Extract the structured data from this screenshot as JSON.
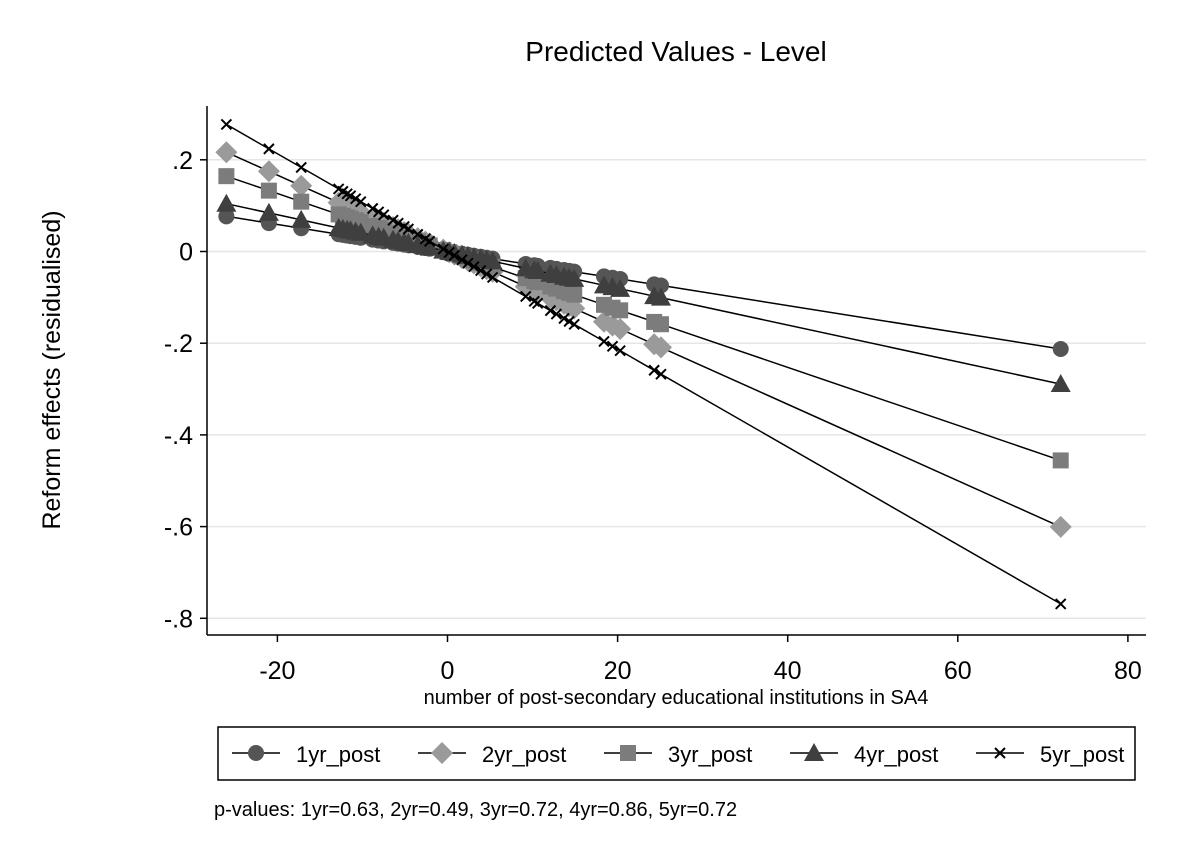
{
  "chart_data": {
    "type": "line",
    "title": "Predicted Values - Level",
    "xlabel": "number of post-secondary educational institutions in SA4",
    "ylabel": "Reform effects (residualised)",
    "xlim": [
      -28,
      82
    ],
    "ylim": [
      -0.83,
      0.32
    ],
    "x_ticks": [
      -20,
      0,
      20,
      40,
      60,
      80
    ],
    "x_tick_labels": [
      "-20",
      "0",
      "20",
      "40",
      "60",
      "80"
    ],
    "y_ticks": [
      0.2,
      0,
      -0.2,
      -0.4,
      -0.6,
      -0.8
    ],
    "y_tick_labels": [
      ".2",
      "0",
      "-.2",
      "-.4",
      "-.6",
      "-.8"
    ],
    "grid": "horizontal",
    "legend_position": "bottom",
    "x": [
      -26,
      -21,
      -17.2,
      -12.8,
      -12.3,
      -11.8,
      -11.4,
      -10.8,
      -10.2,
      -8.8,
      -8.1,
      -7.5,
      -6.4,
      -5.8,
      -5.1,
      -4.6,
      -3.5,
      -2.6,
      -2.1,
      -0.5,
      0.2,
      0.8,
      1.7,
      2.4,
      3.1,
      3.9,
      4.6,
      5.3,
      9.2,
      10.2,
      10.6,
      12.1,
      12.8,
      13.7,
      14.3,
      14.9,
      18.4,
      19.4,
      20.3,
      24.3,
      25.1,
      72.1
    ],
    "series": [
      {
        "name": "1yr_post",
        "marker": "circle",
        "color": "#555555",
        "slope": -0.00295
      },
      {
        "name": "2yr_post",
        "marker": "diamond",
        "color": "#9a9a9a",
        "slope": -0.00833
      },
      {
        "name": "3yr_post",
        "marker": "square",
        "color": "#7c7c7c",
        "slope": -0.00632
      },
      {
        "name": "4yr_post",
        "marker": "triangle",
        "color": "#3f3f3f",
        "slope": -0.00401
      },
      {
        "name": "5yr_post",
        "marker": "x",
        "color": "#000000",
        "slope": -0.01066
      }
    ],
    "note": "p-values: 1yr=0.63,  2yr=0.49,  3yr=0.72,  4yr=0.86,  5yr=0.72"
  }
}
